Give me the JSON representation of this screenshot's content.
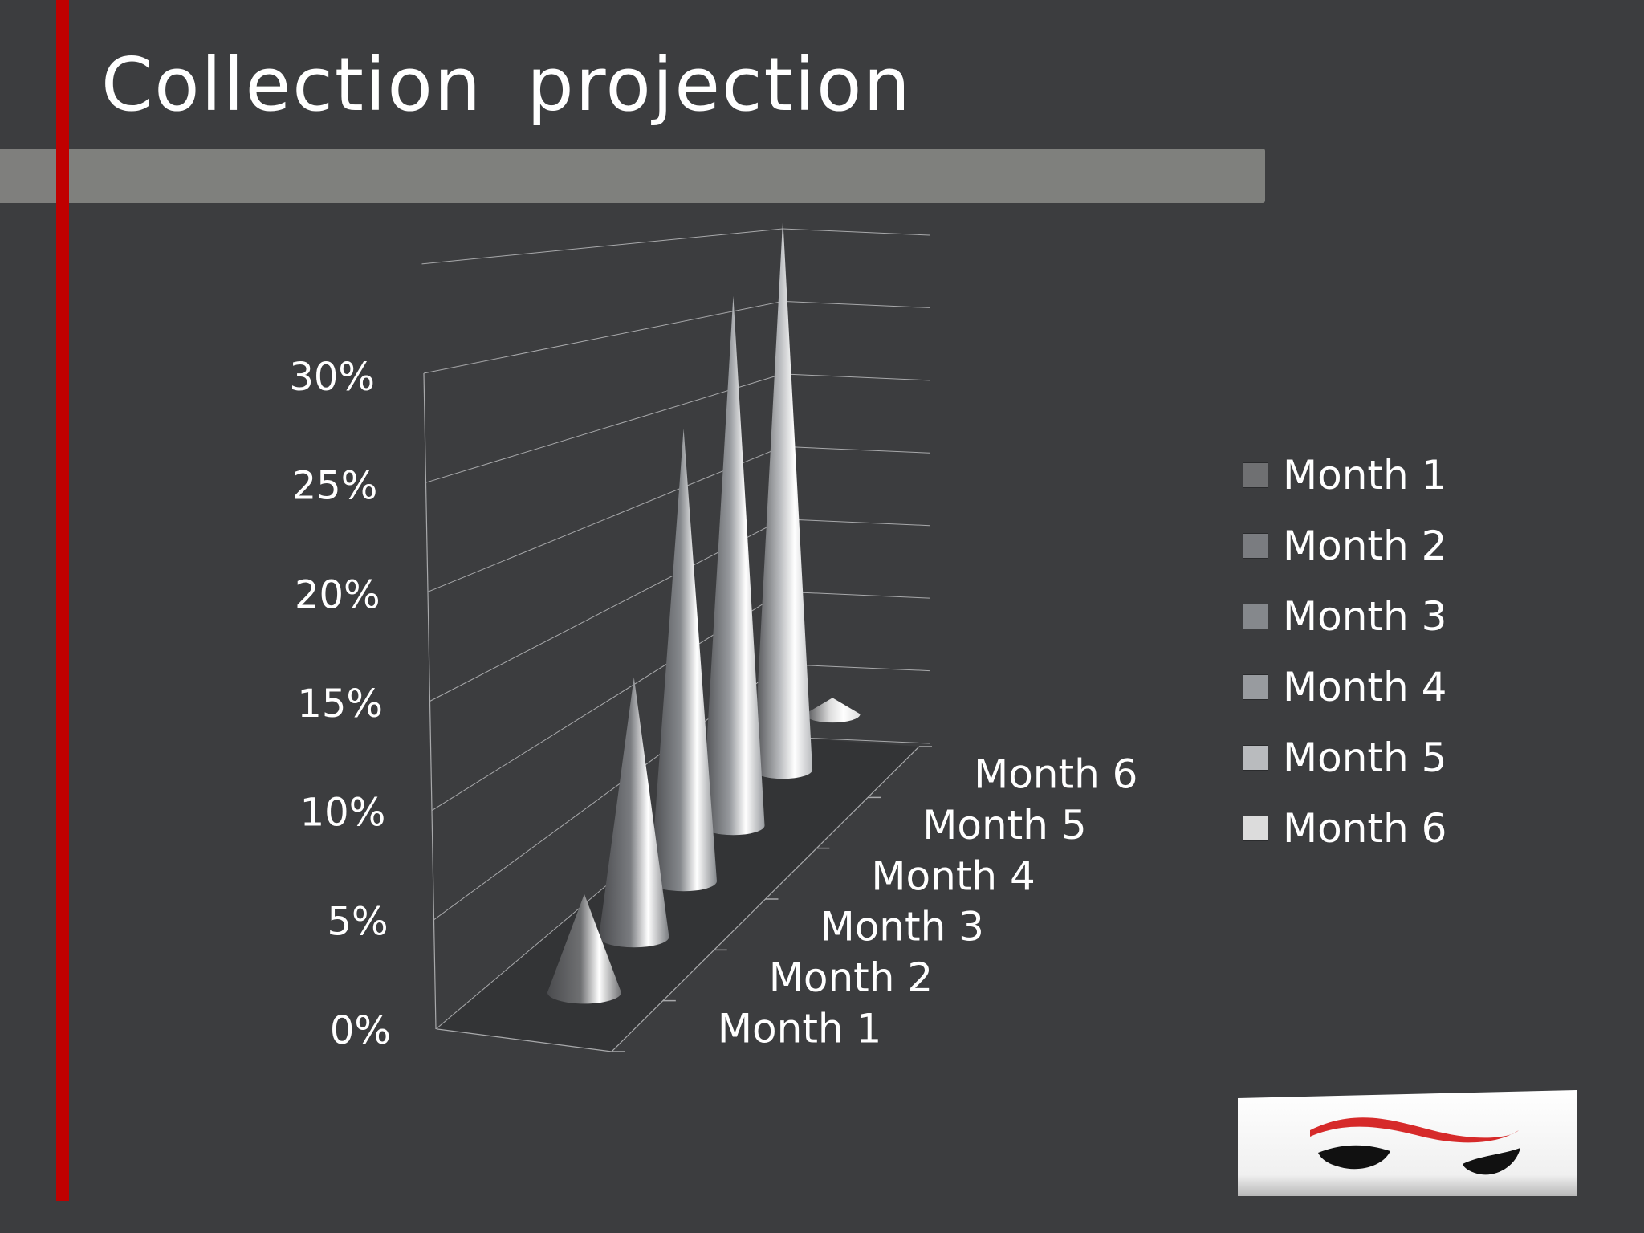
{
  "slide": {
    "title": "Collection  projection"
  },
  "chart_data": {
    "type": "bar",
    "style": "3d-cone",
    "categories": [
      "Month 1",
      "Month 2",
      "Month 3",
      "Month 4",
      "Month 5",
      "Month 6"
    ],
    "series": [
      {
        "name": "Month 1",
        "category": "Month 1",
        "value": 4.5,
        "color": "#6f7072"
      },
      {
        "name": "Month 2",
        "category": "Month 2",
        "value": 12.5,
        "color": "#7a7c80"
      },
      {
        "name": "Month 3",
        "category": "Month 3",
        "value": 23,
        "color": "#85888c"
      },
      {
        "name": "Month 4",
        "category": "Month 4",
        "value": 28.5,
        "color": "#989b9f"
      },
      {
        "name": "Month 5",
        "category": "Month 5",
        "value": 31.5,
        "color": "#b9bbbe"
      },
      {
        "name": "Month 6",
        "category": "Month 6",
        "value": 1,
        "color": "#dcdcdc"
      }
    ],
    "yticks": [
      "0%",
      "5%",
      "10%",
      "15%",
      "20%",
      "25%",
      "30%"
    ],
    "ylim": [
      0,
      35
    ],
    "grid": true,
    "legend_position": "right"
  }
}
